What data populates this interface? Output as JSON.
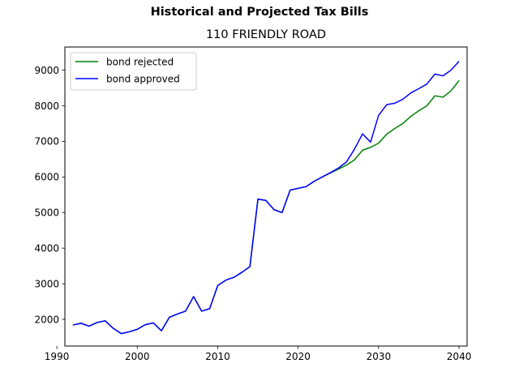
{
  "title": "Historical and Projected Tax Bills",
  "chart_data": {
    "type": "line",
    "subtitle": "110 FRIENDLY ROAD",
    "xlabel": "",
    "ylabel": "",
    "xlim": [
      1991,
      2041
    ],
    "ylim": [
      1250,
      9650
    ],
    "xticks": [
      1990,
      2000,
      2010,
      2020,
      2030,
      2040
    ],
    "yticks": [
      2000,
      3000,
      4000,
      5000,
      6000,
      7000,
      8000,
      9000
    ],
    "grid": false,
    "legend_position": "upper-left",
    "x": [
      1992,
      1993,
      1994,
      1995,
      1996,
      1997,
      1998,
      1999,
      2000,
      2001,
      2002,
      2003,
      2004,
      2005,
      2006,
      2007,
      2008,
      2009,
      2010,
      2011,
      2012,
      2013,
      2014,
      2015,
      2016,
      2017,
      2018,
      2019,
      2020,
      2021,
      2022,
      2023,
      2024,
      2025,
      2026,
      2027,
      2028,
      2029,
      2030,
      2031,
      2032,
      2033,
      2034,
      2035,
      2036,
      2037,
      2038,
      2039,
      2040
    ],
    "series": [
      {
        "name": "bond rejected",
        "color": "#008000",
        "values": [
          1840,
          1890,
          1810,
          1910,
          1960,
          1750,
          1600,
          1650,
          1720,
          1850,
          1900,
          1680,
          2060,
          2150,
          2230,
          2640,
          2230,
          2300,
          2950,
          3100,
          3180,
          3320,
          3480,
          5380,
          5340,
          5080,
          5000,
          5630,
          5680,
          5730,
          5880,
          6000,
          6110,
          6220,
          6330,
          6480,
          6750,
          6830,
          6950,
          7200,
          7360,
          7500,
          7700,
          7860,
          8000,
          8280,
          8240,
          8420,
          8710
        ]
      },
      {
        "name": "bond approved",
        "color": "#0000ff",
        "values": [
          1840,
          1890,
          1810,
          1910,
          1960,
          1750,
          1600,
          1650,
          1720,
          1850,
          1900,
          1680,
          2060,
          2150,
          2230,
          2640,
          2230,
          2300,
          2950,
          3100,
          3180,
          3320,
          3480,
          5380,
          5340,
          5080,
          5000,
          5630,
          5680,
          5730,
          5880,
          6000,
          6120,
          6250,
          6420,
          6780,
          7210,
          6980,
          7730,
          8030,
          8070,
          8180,
          8360,
          8480,
          8610,
          8890,
          8840,
          9000,
          9250
        ]
      }
    ]
  }
}
